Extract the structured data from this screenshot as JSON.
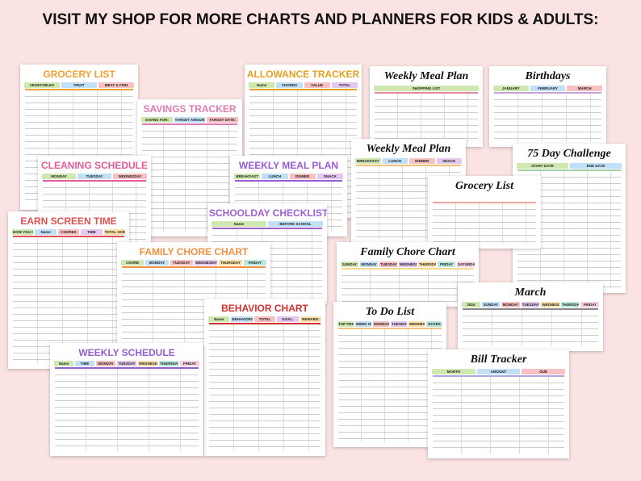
{
  "headline": "VISIT MY SHOP FOR MORE CHARTS AND PLANNERS FOR KIDS & ADULTS:",
  "cards": [
    {
      "title": "GROCERY LIST",
      "labels": [
        "VEGETABLES",
        "FRUIT",
        "MEAT & FISH"
      ]
    },
    {
      "title": "SAVINGS TRACKER",
      "labels": [
        "SAVING FOR:",
        "TARGET AMOUNT:",
        "TARGET DATE:"
      ]
    },
    {
      "title": "ALLOWANCE TRACKER",
      "labels": [
        "Name",
        "CHORES",
        "VALUE",
        "TOTAL"
      ]
    },
    {
      "title": "Weekly Meal Plan",
      "labels": [
        "SHOPPING LIST"
      ]
    },
    {
      "title": "Birthdays",
      "labels": [
        "JANUARY",
        "FEBRUARY",
        "MARCH"
      ]
    },
    {
      "title": "CLEANING SCHEDULE",
      "labels": [
        "MONDAY",
        "TUESDAY",
        "WEDNESDAY"
      ]
    },
    {
      "title": "WEEKLY MEAL PLAN",
      "labels": [
        "BREAKFAST",
        "LUNCH",
        "DINNER",
        "SNACK"
      ]
    },
    {
      "title": "Weekly Meal Plan",
      "labels": [
        "BREAKFAST",
        "LUNCH",
        "DINNER",
        "SNACK"
      ]
    },
    {
      "title": "75 Day Challenge",
      "labels": [
        "START DATE",
        "END DATE"
      ]
    },
    {
      "title": "Grocery List",
      "labels": []
    },
    {
      "title": "SCHOOLDAY CHECKLIST",
      "labels": [
        "Name",
        "BEFORE SCHOOL"
      ]
    },
    {
      "title": "EARN SCREEN TIME",
      "labels": [
        "HOW YOU CAN",
        "Name",
        "CHORES",
        "TIME",
        "TOTAL SCREEN"
      ]
    },
    {
      "title": "FAMILY CHORE CHART",
      "labels": [
        "CHORE",
        "MONDAY",
        "TUESDAY",
        "WEDNESDAY",
        "THURSDAY",
        "FRIDAY"
      ]
    },
    {
      "title": "Family Chore Chart",
      "labels": [
        "SUNDAY",
        "MONDAY",
        "TUESDAY",
        "WEDNESDAY",
        "THURSDAY",
        "FRIDAY",
        "SATURDAY"
      ]
    },
    {
      "title": "March",
      "labels": [
        "2024",
        "SUNDAY",
        "MONDAY",
        "TUESDAY",
        "WEDNESDAY",
        "THURSDAY",
        "FRIDAY"
      ]
    },
    {
      "title": "BEHAVIOR CHART",
      "labels": [
        "Name",
        "BEHAVIORS",
        "TOTAL",
        "GOAL:",
        "REWARD:"
      ]
    },
    {
      "title": "WEEKLY SCHEDULE",
      "labels": [
        "Name",
        "TIME",
        "MONDAY",
        "TUESDAY",
        "WEDNESDAY",
        "THURSDAY",
        "FRIDAY"
      ]
    },
    {
      "title": "To Do List",
      "labels": [
        "TOP PRIORITIES",
        "WEEK OF:",
        "MONDAY",
        "TUESDAY",
        "WEDNESDAY",
        "NOTES"
      ]
    },
    {
      "title": "Bill Tracker",
      "labels": [
        "MONTH",
        "AMOUNT",
        "DUE"
      ]
    }
  ]
}
